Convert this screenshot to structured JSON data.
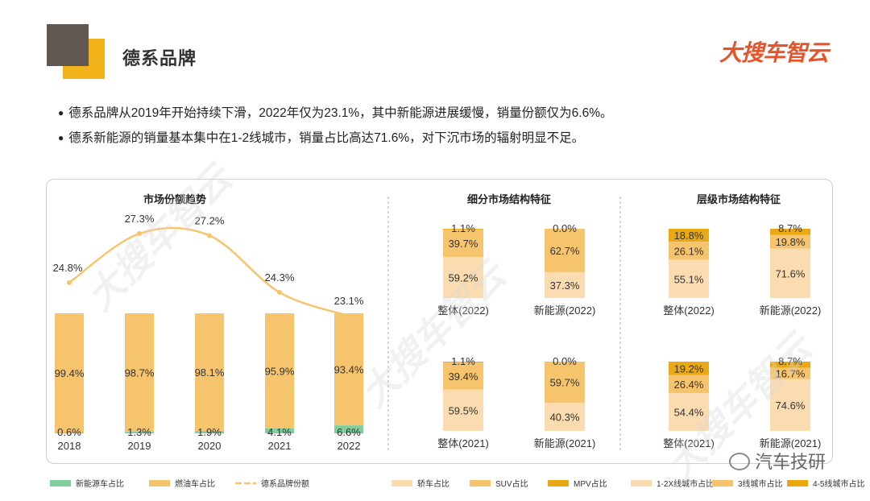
{
  "header": {
    "title": "德系品牌",
    "logo_text": "大搜车智云"
  },
  "bullets": [
    "德系品牌从2019年开始持续下滑，2022年仅为23.1%，其中新能源进展缓慢，销量份额仅为6.6%。",
    "德系新能源的销量基本集中在1-2线城市，销量占比高达71.6%，对下沉市场的辐射明显不足。"
  ],
  "wechat_label": "汽车技研",
  "colors": {
    "nev": "#7fcf9e",
    "fuel": "#f7c46e",
    "share_line": "#f7c46e",
    "sedan": "#fbdcb0",
    "suv": "#f7c46e",
    "mpv": "#eaa912",
    "tier12": "#fbdcb0",
    "tier3": "#f7c46e",
    "tier45": "#eaa912"
  },
  "chart_data": [
    {
      "type": "bar",
      "title": "市场份额趋势",
      "categories": [
        "2018",
        "2019",
        "2020",
        "2021",
        "2022"
      ],
      "series": [
        {
          "name": "新能源车占比",
          "values": [
            0.6,
            1.3,
            1.9,
            4.1,
            6.6
          ],
          "value_labels": [
            "0.6%",
            "1.3%",
            "1.9%",
            "4.1%",
            "6.6%"
          ]
        },
        {
          "name": "燃油车占比",
          "values": [
            99.4,
            98.7,
            98.1,
            95.9,
            93.4
          ],
          "value_labels": [
            "99.4%",
            "98.7%",
            "98.1%",
            "95.9%",
            "93.4%"
          ]
        }
      ],
      "line_series": {
        "name": "德系品牌份额",
        "values": [
          24.8,
          27.3,
          27.2,
          24.3,
          23.1
        ],
        "value_labels": [
          "24.8%",
          "27.3%",
          "27.2%",
          "24.3%",
          "23.1%"
        ]
      },
      "stacked": true,
      "ylim": [
        0,
        100
      ]
    },
    {
      "type": "bar",
      "title": "细分市场结构特征",
      "stacked": true,
      "groups": [
        {
          "categories": [
            "整体(2022)",
            "新能源(2022)"
          ],
          "series": [
            {
              "name": "轿车占比",
              "values": [
                59.2,
                37.3
              ],
              "value_labels": [
                "59.2%",
                "37.3%"
              ]
            },
            {
              "name": "SUV占比",
              "values": [
                39.7,
                62.7
              ],
              "value_labels": [
                "39.7%",
                "62.7%"
              ]
            },
            {
              "name": "MPV占比",
              "values": [
                1.1,
                0.0
              ],
              "value_labels": [
                "1.1%",
                "0.0%"
              ]
            }
          ]
        },
        {
          "categories": [
            "整体(2021)",
            "新能源(2021)"
          ],
          "series": [
            {
              "name": "轿车占比",
              "values": [
                59.5,
                40.3
              ],
              "value_labels": [
                "59.5%",
                "40.3%"
              ]
            },
            {
              "name": "SUV占比",
              "values": [
                39.4,
                59.7
              ],
              "value_labels": [
                "39.4%",
                "59.7%"
              ]
            },
            {
              "name": "MPV占比",
              "values": [
                1.1,
                0.0
              ],
              "value_labels": [
                "1.1%",
                "0.0%"
              ]
            }
          ]
        }
      ]
    },
    {
      "type": "bar",
      "title": "层级市场结构特征",
      "stacked": true,
      "groups": [
        {
          "categories": [
            "整体(2022)",
            "新能源(2022)"
          ],
          "series": [
            {
              "name": "1-2X线城市占比",
              "values": [
                55.1,
                71.6
              ],
              "value_labels": [
                "55.1%",
                "71.6%"
              ]
            },
            {
              "name": "3线城市占比",
              "values": [
                26.1,
                19.8
              ],
              "value_labels": [
                "26.1%",
                "19.8%"
              ]
            },
            {
              "name": "4-5线城市占比",
              "values": [
                18.8,
                8.7
              ],
              "value_labels": [
                "18.8%",
                "8.7%"
              ]
            }
          ]
        },
        {
          "categories": [
            "整体(2021)",
            "新能源(2021)"
          ],
          "series": [
            {
              "name": "1-2X线城市占比",
              "values": [
                54.4,
                74.6
              ],
              "value_labels": [
                "54.4%",
                "74.6%"
              ]
            },
            {
              "name": "3线城市占比",
              "values": [
                26.4,
                16.7
              ],
              "value_labels": [
                "26.4%",
                "16.7%"
              ]
            },
            {
              "name": "4-5线城市占比",
              "values": [
                19.2,
                8.7
              ],
              "value_labels": [
                "19.2%",
                "8.7%"
              ]
            }
          ]
        }
      ]
    }
  ],
  "legend": [
    {
      "label": "新能源车占比",
      "color_key": "nev",
      "kind": "box"
    },
    {
      "label": "燃油车占比",
      "color_key": "fuel",
      "kind": "box"
    },
    {
      "label": "德系品牌份额",
      "color_key": "share_line",
      "kind": "line"
    },
    {
      "label": "轿车占比",
      "color_key": "sedan",
      "kind": "box"
    },
    {
      "label": "SUV占比",
      "color_key": "suv",
      "kind": "box"
    },
    {
      "label": "MPV占比",
      "color_key": "mpv",
      "kind": "box"
    },
    {
      "label": "1-2X线城市占比",
      "color_key": "tier12",
      "kind": "box"
    },
    {
      "label": "3线城市占比",
      "color_key": "tier3",
      "kind": "box"
    },
    {
      "label": "4-5线城市占比",
      "color_key": "tier45",
      "kind": "box"
    }
  ]
}
